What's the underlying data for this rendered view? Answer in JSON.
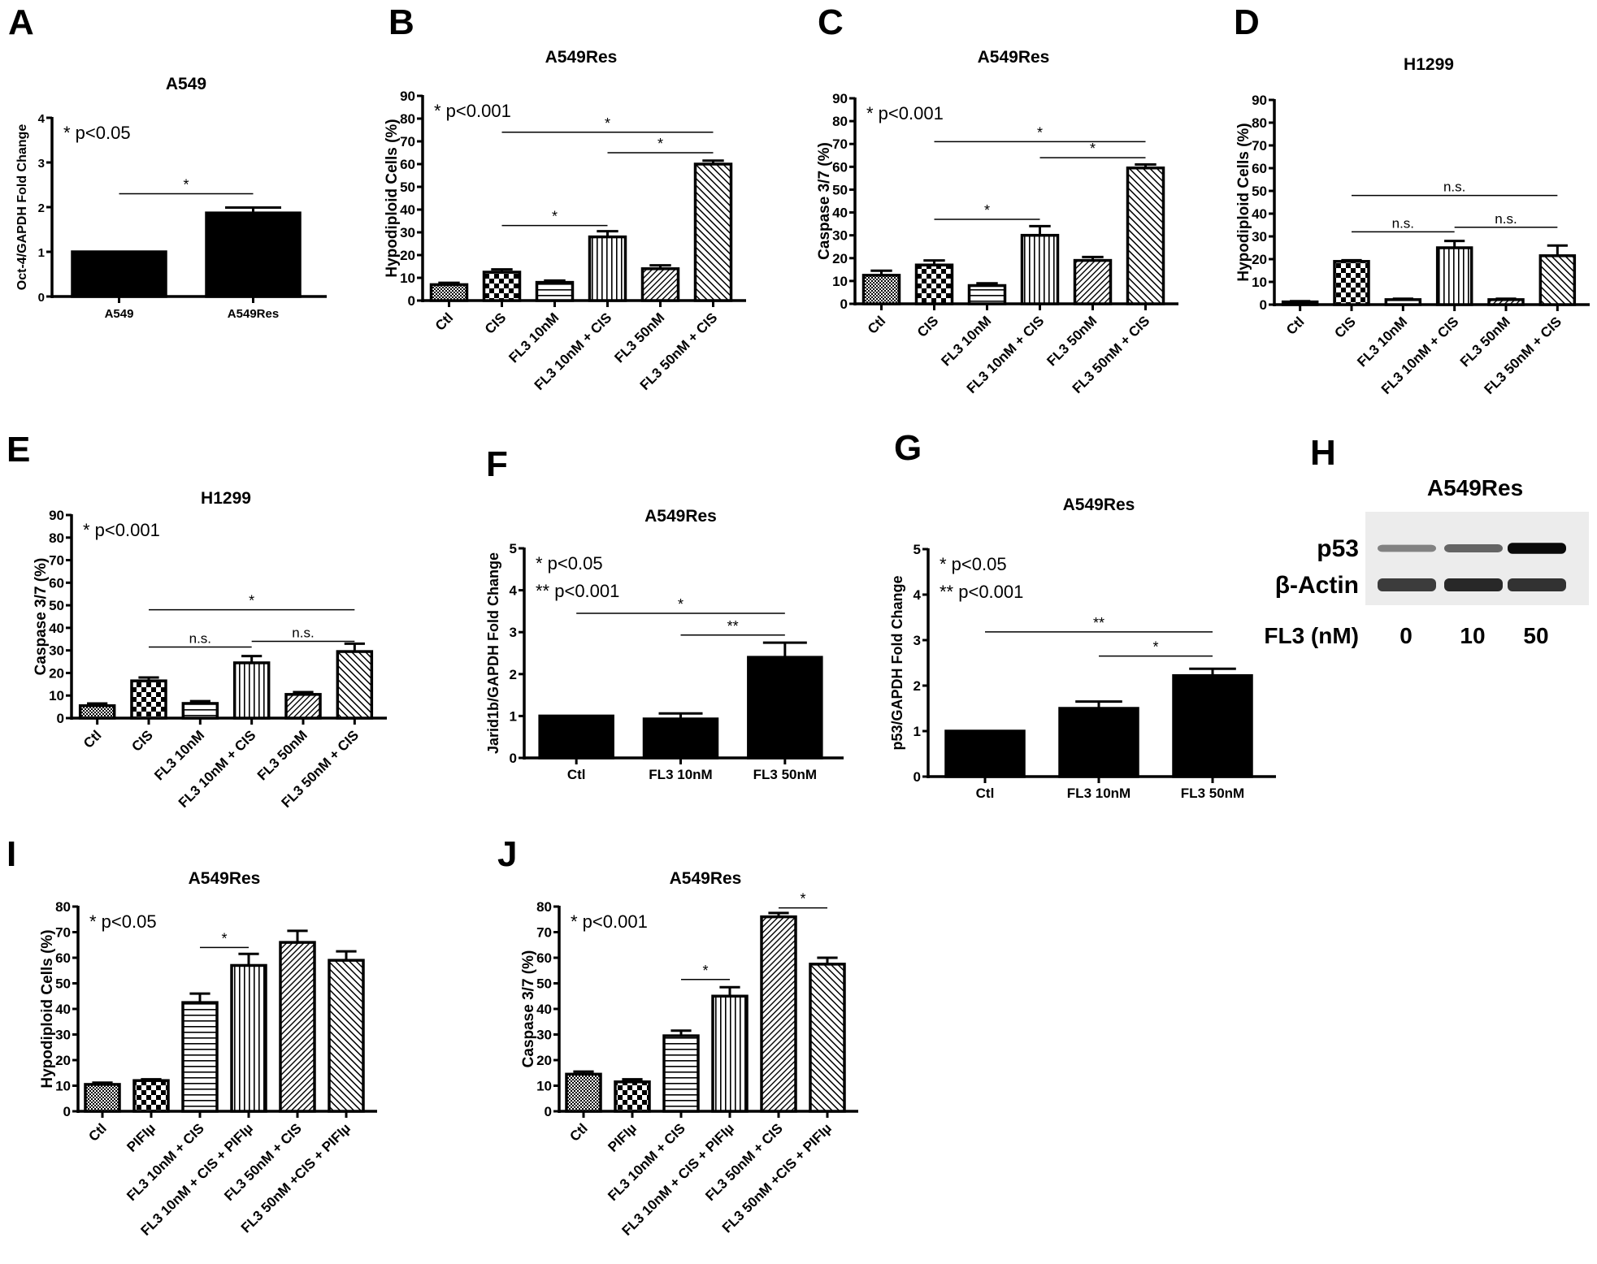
{
  "figure": {
    "panel_letters": [
      "A",
      "B",
      "C",
      "D",
      "E",
      "F",
      "G",
      "H",
      "I",
      "J"
    ]
  },
  "patterns": {
    "black": "solid black",
    "fine_check": "fine crosshatch",
    "check": "checkerboard",
    "hstripe": "horizontal stripes",
    "vstripe": "vertical stripes",
    "diag_fwd": "forward diagonal hatch",
    "diag_back": "backward diagonal hatch"
  },
  "chart_data": [
    {
      "id": "A",
      "type": "bar",
      "title": "A549",
      "ylabel": "Oct-4/GAPDH Fold Change",
      "xlabel": "",
      "ylim": [
        0,
        4
      ],
      "yticks": [
        0,
        1,
        2,
        3,
        4
      ],
      "categories": [
        "A549",
        "A549Res"
      ],
      "values": [
        1.0,
        1.87
      ],
      "errors": [
        0,
        0.12
      ],
      "patterns": [
        "black",
        "black"
      ],
      "legend_notes": [
        "* p<0.05"
      ],
      "significance": [
        {
          "from": 0,
          "to": 1,
          "y": 2.3,
          "label": "*"
        }
      ],
      "rotate_labels": false
    },
    {
      "id": "B",
      "type": "bar",
      "title": "A549Res",
      "ylabel": "Hypodiploid Cells (%)",
      "xlabel": "",
      "ylim": [
        0,
        90
      ],
      "yticks": [
        0,
        10,
        20,
        30,
        40,
        50,
        60,
        70,
        80,
        90
      ],
      "categories": [
        "Ctl",
        "CIS",
        "FL3 10nM",
        "FL3 10nM + CIS",
        "FL3 50nM",
        "FL3 50nM + CIS"
      ],
      "values": [
        7,
        12.5,
        8,
        28,
        14,
        60
      ],
      "errors": [
        0.8,
        1.2,
        0.8,
        2.5,
        1.5,
        1.5
      ],
      "patterns": [
        "fine_check",
        "check",
        "hstripe",
        "vstripe",
        "diag_fwd",
        "diag_back"
      ],
      "legend_notes": [
        "* p<0.001"
      ],
      "significance": [
        {
          "from": 1,
          "to": 5,
          "y": 74,
          "label": "*"
        },
        {
          "from": 3,
          "to": 5,
          "y": 65,
          "label": "*"
        },
        {
          "from": 1,
          "to": 3,
          "y": 33,
          "label": "*"
        }
      ],
      "rotate_labels": true
    },
    {
      "id": "C",
      "type": "bar",
      "title": "A549Res",
      "ylabel": "Caspase 3/7 (%)",
      "xlabel": "",
      "ylim": [
        0,
        90
      ],
      "yticks": [
        0,
        10,
        20,
        30,
        40,
        50,
        60,
        70,
        80,
        90
      ],
      "categories": [
        "Ctl",
        "CIS",
        "FL3 10nM",
        "FL3 10nM + CIS",
        "FL3 50nM",
        "FL3 50nM + CIS"
      ],
      "values": [
        12.5,
        17,
        8,
        30,
        19,
        59.5
      ],
      "errors": [
        2,
        2,
        1,
        4,
        1.5,
        1.5
      ],
      "patterns": [
        "fine_check",
        "check",
        "hstripe",
        "vstripe",
        "diag_fwd",
        "diag_back"
      ],
      "legend_notes": [
        "* p<0.001"
      ],
      "significance": [
        {
          "from": 1,
          "to": 5,
          "y": 71,
          "label": "*"
        },
        {
          "from": 3,
          "to": 5,
          "y": 64,
          "label": "*"
        },
        {
          "from": 1,
          "to": 3,
          "y": 37,
          "label": "*"
        }
      ],
      "rotate_labels": true
    },
    {
      "id": "D",
      "type": "bar",
      "title": "H1299",
      "ylabel": "Hypodiploid Cells (%)",
      "xlabel": "",
      "ylim": [
        0,
        90
      ],
      "yticks": [
        0,
        10,
        20,
        30,
        40,
        50,
        60,
        70,
        80,
        90
      ],
      "categories": [
        "Ctl",
        "CIS",
        "FL3 10nM",
        "FL3 10nM + CIS",
        "FL3 50nM",
        "FL3 50nM + CIS"
      ],
      "values": [
        1.2,
        19,
        2.2,
        25,
        2.2,
        21.5
      ],
      "errors": [
        0.3,
        0.5,
        0.4,
        3,
        0.4,
        4.5
      ],
      "patterns": [
        "fine_check",
        "check",
        "hstripe",
        "vstripe",
        "diag_fwd",
        "diag_back"
      ],
      "legend_notes": [],
      "significance": [
        {
          "from": 1,
          "to": 5,
          "y": 48,
          "label": "n.s."
        },
        {
          "from": 1,
          "to": 3,
          "y": 32,
          "label": "n.s."
        },
        {
          "from": 3,
          "to": 5,
          "y": 34,
          "label": "n.s."
        }
      ],
      "rotate_labels": true
    },
    {
      "id": "E",
      "type": "bar",
      "title": "H1299",
      "ylabel": "Caspase 3/7 (%)",
      "xlabel": "",
      "ylim": [
        0,
        90
      ],
      "yticks": [
        0,
        10,
        20,
        30,
        40,
        50,
        60,
        70,
        80,
        90
      ],
      "categories": [
        "Ctl",
        "CIS",
        "FL3 10nM",
        "FL3 10nM + CIS",
        "FL3 50nM",
        "FL3 50nM + CIS"
      ],
      "values": [
        5.5,
        16.5,
        6.5,
        24.5,
        10.5,
        29.5
      ],
      "errors": [
        1,
        1.5,
        1,
        3,
        1,
        3.5
      ],
      "patterns": [
        "fine_check",
        "check",
        "hstripe",
        "vstripe",
        "diag_fwd",
        "diag_back"
      ],
      "legend_notes": [
        "* p<0.001"
      ],
      "significance": [
        {
          "from": 1,
          "to": 5,
          "y": 48,
          "label": "*"
        },
        {
          "from": 1,
          "to": 3,
          "y": 31.5,
          "label": "n.s."
        },
        {
          "from": 3,
          "to": 5,
          "y": 34,
          "label": "n.s."
        }
      ],
      "rotate_labels": true
    },
    {
      "id": "F",
      "type": "bar",
      "title": "A549Res",
      "ylabel": "Jarid1b/GAPDH Fold Change",
      "xlabel": "",
      "ylim": [
        0,
        5
      ],
      "yticks": [
        0,
        1,
        2,
        3,
        4,
        5
      ],
      "categories": [
        "Ctl",
        "FL3 10nM",
        "FL3 50nM"
      ],
      "values": [
        1.0,
        0.93,
        2.4
      ],
      "errors": [
        0,
        0.13,
        0.35
      ],
      "patterns": [
        "black",
        "black",
        "black"
      ],
      "legend_notes": [
        "* p<0.05",
        "** p<0.001"
      ],
      "significance": [
        {
          "from": 0,
          "to": 2,
          "y": 3.45,
          "label": "*"
        },
        {
          "from": 1,
          "to": 2,
          "y": 2.93,
          "label": "**"
        }
      ],
      "rotate_labels": false
    },
    {
      "id": "G",
      "type": "bar",
      "title": "A549Res",
      "ylabel": "p53/GAPDH Fold Change",
      "xlabel": "",
      "ylim": [
        0,
        5
      ],
      "yticks": [
        0,
        1,
        2,
        3,
        4,
        5
      ],
      "categories": [
        "Ctl",
        "FL3 10nM",
        "FL3 50nM"
      ],
      "values": [
        1.0,
        1.5,
        2.22
      ],
      "errors": [
        0,
        0.15,
        0.15
      ],
      "patterns": [
        "black",
        "black",
        "black"
      ],
      "legend_notes": [
        "* p<0.05",
        "** p<0.001"
      ],
      "significance": [
        {
          "from": 0,
          "to": 2,
          "y": 3.18,
          "label": "**"
        },
        {
          "from": 1,
          "to": 2,
          "y": 2.65,
          "label": "*"
        }
      ],
      "rotate_labels": false
    },
    {
      "id": "I",
      "type": "bar",
      "title": "A549Res",
      "ylabel": "Hypodiploid Cells (%)",
      "xlabel": "",
      "ylim": [
        0,
        80
      ],
      "yticks": [
        0,
        10,
        20,
        30,
        40,
        50,
        60,
        70,
        80
      ],
      "categories": [
        "Ctl",
        "PIFIµ",
        "FL3 10nM + CIS",
        "FL3 10nM + CIS + PIFIµ",
        "FL3 50nM + CIS",
        "FL3 50nM +CIS + PIFIµ"
      ],
      "values": [
        10.5,
        12,
        42.5,
        57,
        66,
        59
      ],
      "errors": [
        0.7,
        0.5,
        3.5,
        4.5,
        4.5,
        3.5
      ],
      "patterns": [
        "fine_check",
        "check",
        "hstripe",
        "vstripe",
        "diag_fwd",
        "diag_back"
      ],
      "legend_notes": [
        "* p<0.05"
      ],
      "significance": [
        {
          "from": 2,
          "to": 3,
          "y": 64,
          "label": "*"
        }
      ],
      "rotate_labels": true
    },
    {
      "id": "J",
      "type": "bar",
      "title": "A549Res",
      "ylabel": "Caspase 3/7 (%)",
      "xlabel": "",
      "ylim": [
        0,
        80
      ],
      "yticks": [
        0,
        10,
        20,
        30,
        40,
        50,
        60,
        70,
        80
      ],
      "categories": [
        "Ctl",
        "PIFIµ",
        "FL3 10nM + CIS",
        "FL3 10nM + CIS + PIFIµ",
        "FL3 50nM + CIS",
        "FL3 50nM +CIS + PIFIµ"
      ],
      "values": [
        14.5,
        11.5,
        29.5,
        45,
        76,
        57.5
      ],
      "errors": [
        1,
        1,
        2,
        3.5,
        1.5,
        2.5
      ],
      "patterns": [
        "fine_check",
        "check",
        "hstripe",
        "vstripe",
        "diag_fwd",
        "diag_back"
      ],
      "legend_notes": [
        "* p<0.001"
      ],
      "significance": [
        {
          "from": 2,
          "to": 3,
          "y": 51.5,
          "label": "*"
        },
        {
          "from": 4,
          "to": 5,
          "y": 79.5,
          "label": "*"
        }
      ],
      "rotate_labels": true
    }
  ],
  "western_blot": {
    "id": "H",
    "title": "A549Res",
    "rows": [
      {
        "label": "p53",
        "intensities": [
          0.35,
          0.5,
          0.95
        ]
      },
      {
        "label": "β-Actin",
        "intensities": [
          0.7,
          0.8,
          0.75
        ]
      }
    ],
    "lane_header": "FL3 (nM)",
    "lanes": [
      "0",
      "10",
      "50"
    ]
  }
}
